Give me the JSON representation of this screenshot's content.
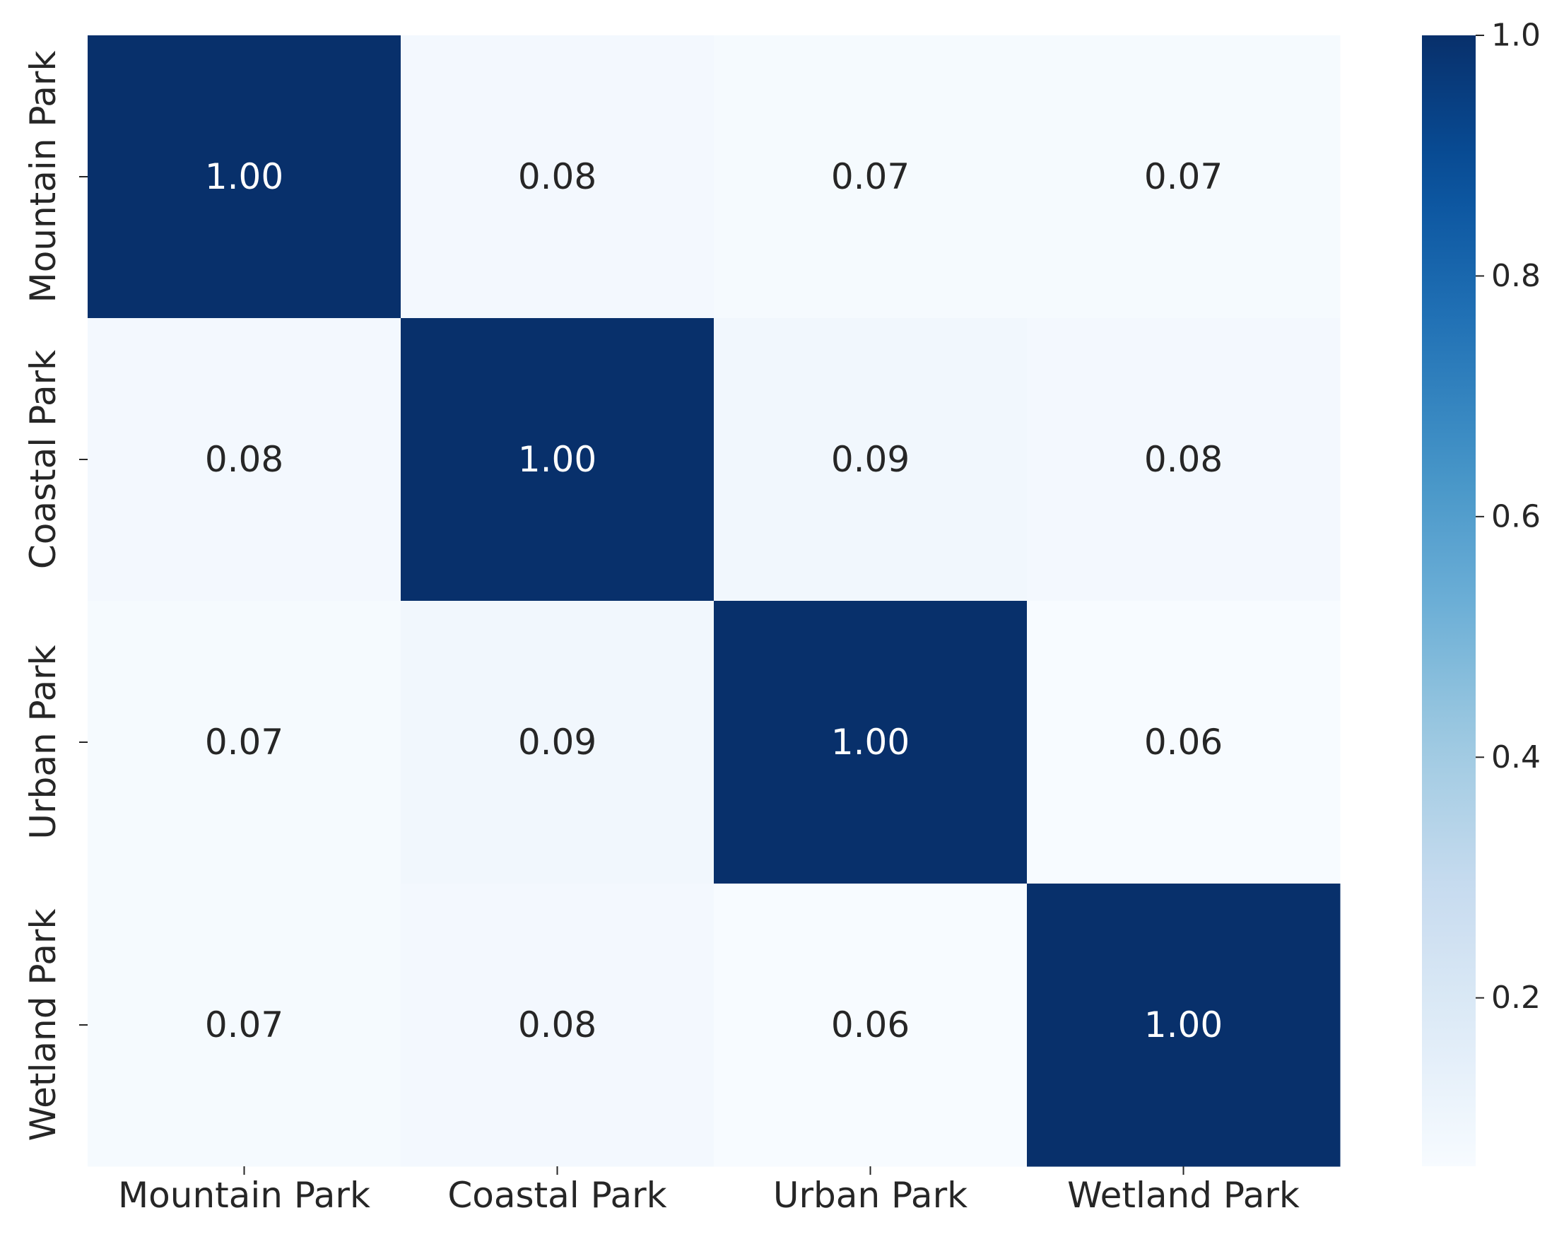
{
  "chart_data": {
    "type": "heatmap",
    "rows": [
      "Mountain Park",
      "Coastal Park",
      "Urban Park",
      "Wetland Park"
    ],
    "columns": [
      "Mountain Park",
      "Coastal Park",
      "Urban Park",
      "Wetland Park"
    ],
    "values": [
      [
        1.0,
        0.08,
        0.07,
        0.07
      ],
      [
        0.08,
        1.0,
        0.09,
        0.08
      ],
      [
        0.07,
        0.09,
        1.0,
        0.06
      ],
      [
        0.07,
        0.08,
        0.06,
        1.0
      ]
    ],
    "annotation_format": "0.00",
    "colormap": "Blues",
    "colorbar": {
      "range": [
        0.06,
        1.0
      ],
      "ticks": [
        0.2,
        0.4,
        0.6,
        0.8,
        1.0
      ],
      "tick_labels": [
        "0.2",
        "0.4",
        "0.6",
        "0.8",
        "1.0"
      ],
      "placement": "right"
    },
    "title": "",
    "xlabel": "",
    "ylabel": "",
    "grid": false
  }
}
